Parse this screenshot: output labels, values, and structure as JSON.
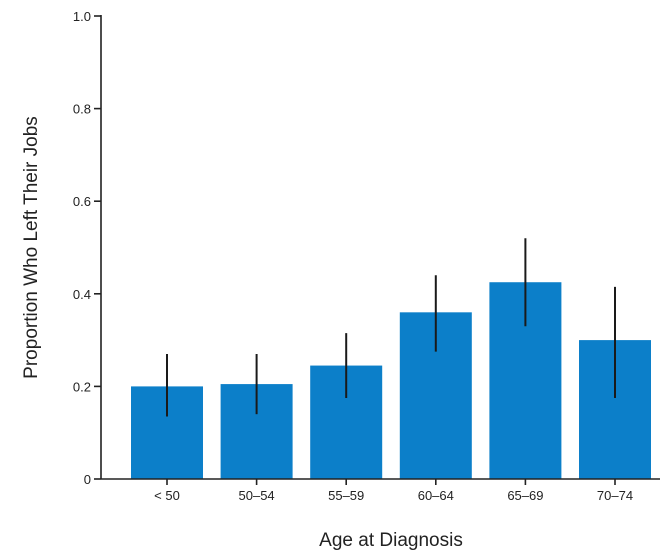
{
  "chart_data": {
    "type": "bar",
    "title": "",
    "xlabel": "Age at Diagnosis",
    "ylabel": "Proportion Who Left Their Jobs",
    "categories": [
      "< 50",
      "50–54",
      "55–59",
      "60–64",
      "65–69",
      "70–74"
    ],
    "values": [
      0.2,
      0.205,
      0.245,
      0.36,
      0.425,
      0.3
    ],
    "error_low": [
      0.135,
      0.14,
      0.175,
      0.275,
      0.33,
      0.175
    ],
    "error_high": [
      0.27,
      0.27,
      0.315,
      0.44,
      0.52,
      0.415
    ],
    "ylim": [
      0,
      1.0
    ],
    "yticks": [
      0,
      0.2,
      0.4,
      0.6,
      0.8,
      1.0
    ],
    "ytick_labels": [
      "0",
      "0.2",
      "0.4",
      "0.6",
      "0.8",
      "1.0"
    ],
    "grid": false,
    "legend": "none",
    "bar_color": "#0c7fc9",
    "error_bar_color": "#1a1a1a"
  }
}
